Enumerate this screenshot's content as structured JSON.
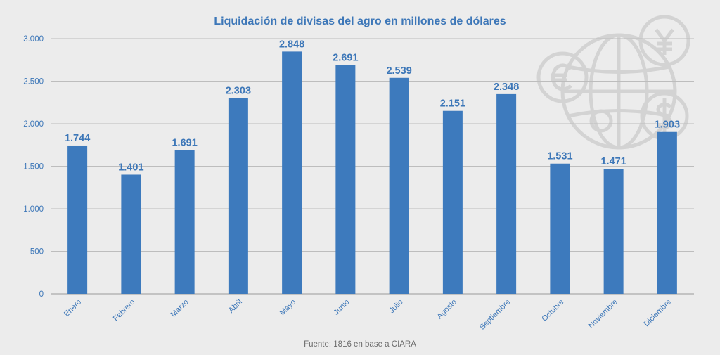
{
  "chart_data": {
    "type": "bar",
    "title": "Liquidación de divisas del agro en millones de dólares",
    "source": "Fuente: 1816 en base a CIARA",
    "categories": [
      "Enero",
      "Febrero",
      "Marzo",
      "Abril",
      "Mayo",
      "Junio",
      "Julio",
      "Agosto",
      "Septiembre",
      "Octubre",
      "Noviembre",
      "Diciembre"
    ],
    "values": [
      1744,
      1401,
      1691,
      2303,
      2848,
      2691,
      2539,
      2151,
      2348,
      1531,
      1471,
      1903
    ],
    "data_labels": [
      "1.744",
      "1.401",
      "1.691",
      "2.303",
      "2.848",
      "2.691",
      "2.539",
      "2.151",
      "2.348",
      "1.531",
      "1.471",
      "1.903"
    ],
    "yticks": [
      0,
      500,
      1000,
      1500,
      2000,
      2500,
      3000
    ],
    "ytick_labels": [
      "0",
      "500",
      "1.000",
      "1.500",
      "2.000",
      "2.500",
      "3.000"
    ],
    "ylim": [
      0,
      3000
    ],
    "xlabel": "",
    "ylabel": "",
    "grid": true,
    "legend": "none",
    "bar_color": "#3d7abd",
    "text_color": "#3d77b8",
    "watermark_icon": "globe-currency-icon"
  }
}
